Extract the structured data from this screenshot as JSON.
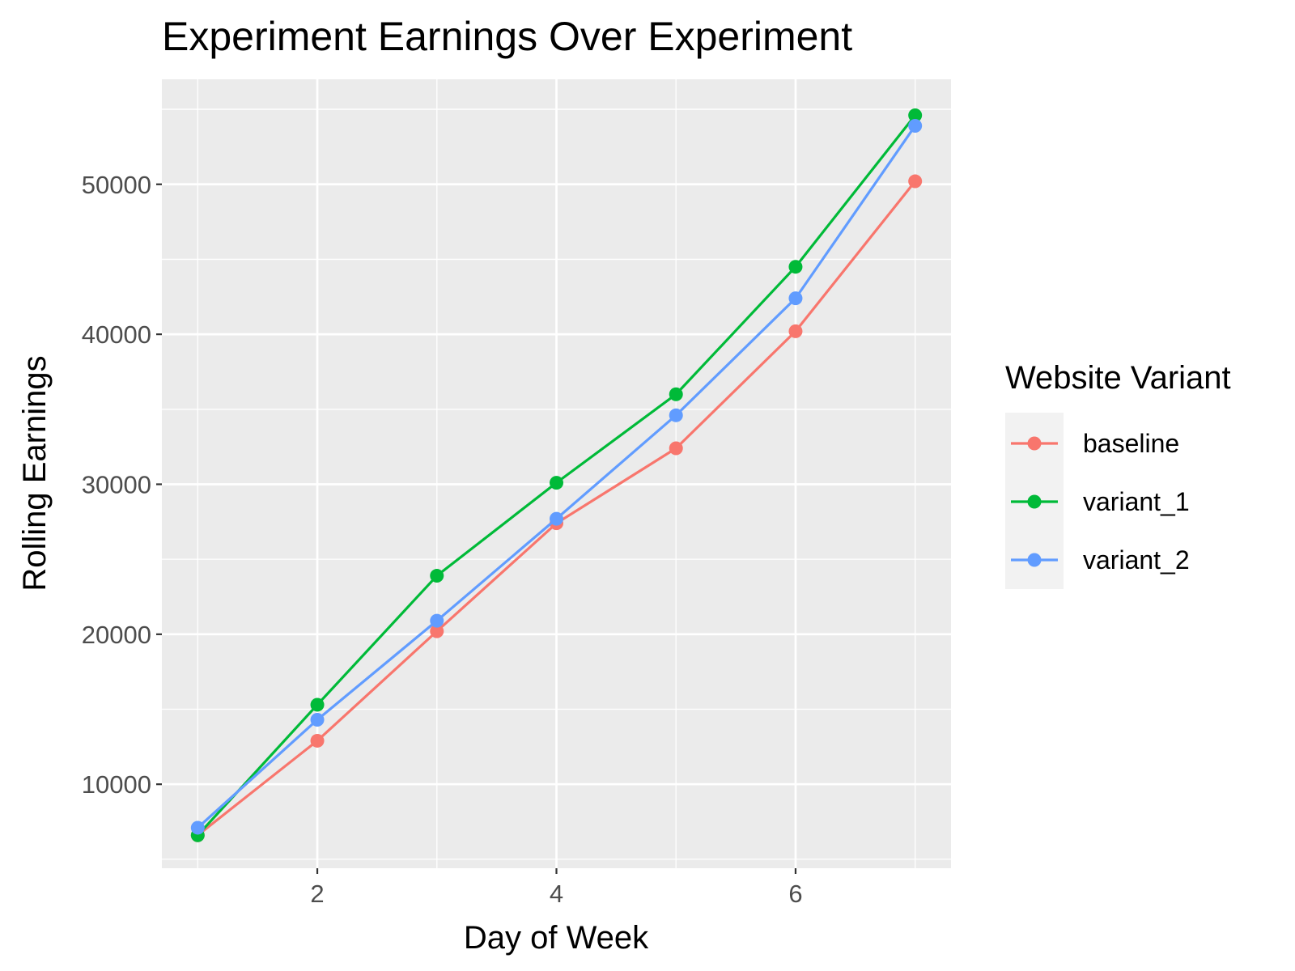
{
  "chart_data": {
    "type": "line",
    "title": "Experiment Earnings Over Experiment",
    "xlabel": "Day of Week",
    "ylabel": "Rolling Earnings",
    "x": [
      1,
      2,
      3,
      4,
      5,
      6,
      7
    ],
    "xticks": [
      2,
      4,
      6
    ],
    "yticks": [
      10000,
      20000,
      30000,
      40000,
      50000
    ],
    "xlim": [
      0.7,
      7.3
    ],
    "ylim": [
      4400,
      57000
    ],
    "grid": true,
    "legend_title": "Website Variant",
    "legend_position": "right",
    "series": [
      {
        "name": "baseline",
        "color": "#F8766D",
        "values": [
          6600,
          12900,
          20200,
          27400,
          32400,
          40200,
          50200
        ]
      },
      {
        "name": "variant_1",
        "color": "#00BA38",
        "values": [
          6600,
          15300,
          23900,
          30100,
          36000,
          44500,
          54600
        ]
      },
      {
        "name": "variant_2",
        "color": "#619CFF",
        "values": [
          7100,
          14300,
          20900,
          27700,
          34600,
          42400,
          53900
        ]
      }
    ]
  }
}
